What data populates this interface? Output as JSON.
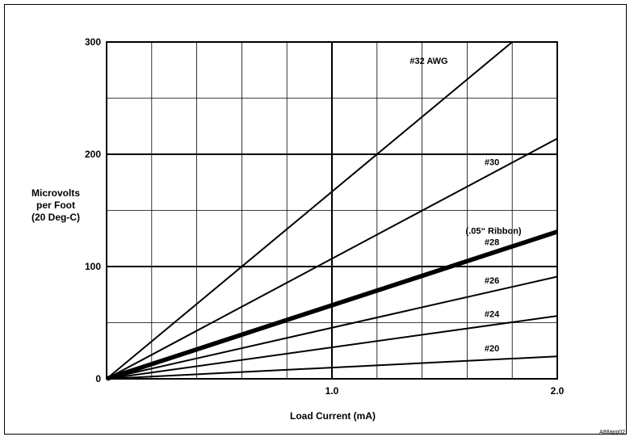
{
  "chart_data": {
    "type": "line",
    "title": "",
    "xlabel": "Load Current (mA)",
    "ylabel": [
      "Microvolts",
      "per Foot",
      "(20 Deg-C)"
    ],
    "xlim": [
      0,
      2.0
    ],
    "ylim": [
      0,
      300
    ],
    "x_ticks": [
      {
        "value": 1.0,
        "label": "1.0"
      },
      {
        "value": 2.0,
        "label": "2.0"
      }
    ],
    "y_ticks": [
      {
        "value": 0,
        "label": "0"
      },
      {
        "value": 100,
        "label": "100"
      },
      {
        "value": 200,
        "label": "200"
      },
      {
        "value": 300,
        "label": "300"
      }
    ],
    "grid": true,
    "series": [
      {
        "name": "#32 AWG",
        "x": [
          0,
          1.8
        ],
        "y": [
          0,
          300
        ],
        "heavy": false
      },
      {
        "name": "#30",
        "x": [
          0,
          2.0
        ],
        "y": [
          0,
          214
        ],
        "heavy": false
      },
      {
        "name": "#28",
        "subtitle": "(.05“ Ribbon)",
        "x": [
          0,
          2.0
        ],
        "y": [
          0,
          131
        ],
        "heavy": true
      },
      {
        "name": "#26",
        "x": [
          0,
          2.0
        ],
        "y": [
          0,
          91
        ],
        "heavy": false
      },
      {
        "name": "#24",
        "x": [
          0,
          2.0
        ],
        "y": [
          0,
          56
        ],
        "heavy": false
      },
      {
        "name": "#20",
        "x": [
          0,
          2.0
        ],
        "y": [
          0,
          20
        ],
        "heavy": false
      }
    ],
    "figure_code": "A88app02"
  }
}
